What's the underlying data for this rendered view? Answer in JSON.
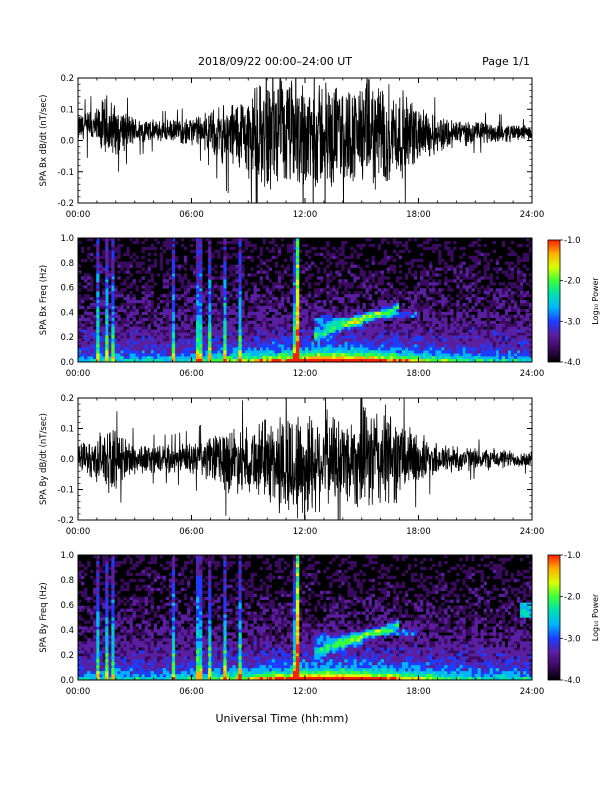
{
  "header": {
    "title": "2018/09/22  00:00–24:00 UT",
    "page": "Page 1/1"
  },
  "xlabel": "Universal Time (hh:mm)",
  "colorbar": {
    "label": "Log₁₀ Power",
    "ticks": [
      "-1.0",
      "-2.0",
      "-3.0",
      "-4.0"
    ],
    "range": [
      -4.0,
      -1.0
    ],
    "colors": [
      "#000000",
      "#3a0a5e",
      "#5a1fa0",
      "#1e3cff",
      "#00b4ff",
      "#00e0b0",
      "#3cff3c",
      "#d8ff00",
      "#ffb000",
      "#ff2000"
    ]
  },
  "chart_data": [
    {
      "type": "line",
      "ylabel": "SPA Bx dB/dt (nT/sec)",
      "xlim": [
        0,
        24
      ],
      "ylim": [
        -0.2,
        0.2
      ],
      "x_ticks": [
        "00:00",
        "06:00",
        "12:00",
        "18:00",
        "24:00"
      ],
      "y_ticks": [
        "-0.2",
        "-0.1",
        "0.0",
        "0.1",
        "0.2"
      ],
      "envelope": {
        "hours": [
          0,
          1,
          1.5,
          2,
          3,
          4,
          5,
          6,
          7,
          7.5,
          8,
          9,
          10,
          11,
          12,
          13,
          14,
          15,
          16,
          17,
          18,
          19,
          20,
          21,
          22,
          23,
          24
        ],
        "amplitude": [
          0.05,
          0.07,
          0.12,
          0.09,
          0.05,
          0.04,
          0.04,
          0.05,
          0.07,
          0.1,
          0.12,
          0.15,
          0.2,
          0.2,
          0.2,
          0.2,
          0.17,
          0.18,
          0.2,
          0.16,
          0.1,
          0.07,
          0.05,
          0.04,
          0.04,
          0.03,
          0.025
        ],
        "baseline": [
          0.04,
          0.04,
          0.04,
          0.035,
          0.03,
          0.03,
          0.03,
          0.03,
          0.03,
          0.02,
          0.02,
          0.02,
          0.02,
          0.02,
          0.02,
          0.02,
          0.02,
          0.02,
          0.02,
          0.02,
          0.02,
          0.02,
          0.025,
          0.025,
          0.025,
          0.025,
          0.025
        ]
      }
    },
    {
      "type": "heatmap",
      "ylabel": "SPA Bx Freq (Hz)",
      "xlim": [
        0,
        24
      ],
      "ylim": [
        0,
        1.0
      ],
      "x_ticks": [
        "00:00",
        "06:00",
        "12:00",
        "18:00",
        "24:00"
      ],
      "y_ticks": [
        "0.0",
        "0.2",
        "0.4",
        "0.6",
        "0.8",
        "1.0"
      ],
      "zlim": [
        -4.0,
        -1.0
      ]
    },
    {
      "type": "line",
      "ylabel": "SPA By dB/dt (nT/sec)",
      "xlim": [
        0,
        24
      ],
      "ylim": [
        -0.2,
        0.2
      ],
      "x_ticks": [
        "00:00",
        "06:00",
        "12:00",
        "18:00",
        "24:00"
      ],
      "y_ticks": [
        "-0.2",
        "-0.1",
        "0.0",
        "0.1",
        "0.2"
      ],
      "envelope": {
        "hours": [
          0,
          1,
          1.5,
          2,
          3,
          4,
          5,
          6,
          7,
          7.5,
          8,
          9,
          10,
          11,
          12,
          13,
          14,
          15,
          16,
          17,
          18,
          19,
          20,
          21,
          22,
          23,
          24
        ],
        "amplitude": [
          0.05,
          0.08,
          0.13,
          0.1,
          0.06,
          0.05,
          0.05,
          0.06,
          0.08,
          0.11,
          0.12,
          0.12,
          0.15,
          0.2,
          0.2,
          0.17,
          0.16,
          0.18,
          0.2,
          0.15,
          0.09,
          0.06,
          0.05,
          0.04,
          0.04,
          0.03,
          0.03
        ],
        "baseline": [
          0.0,
          0.0,
          0.0,
          0.0,
          0.0,
          0.0,
          0.0,
          0.0,
          0.0,
          0.0,
          0.0,
          0.0,
          0.0,
          -0.03,
          -0.02,
          0.0,
          0.0,
          0.0,
          0.0,
          0.0,
          0.0,
          0.0,
          0.0,
          0.0,
          0.0,
          0.0,
          0.0
        ]
      }
    },
    {
      "type": "heatmap",
      "ylabel": "SPA By Freq (Hz)",
      "xlim": [
        0,
        24
      ],
      "ylim": [
        0,
        1.0
      ],
      "x_ticks": [
        "00:00",
        "06:00",
        "12:00",
        "18:00",
        "24:00"
      ],
      "y_ticks": [
        "0.0",
        "0.2",
        "0.4",
        "0.6",
        "0.8",
        "1.0"
      ],
      "zlim": [
        -4.0,
        -1.0
      ]
    }
  ]
}
